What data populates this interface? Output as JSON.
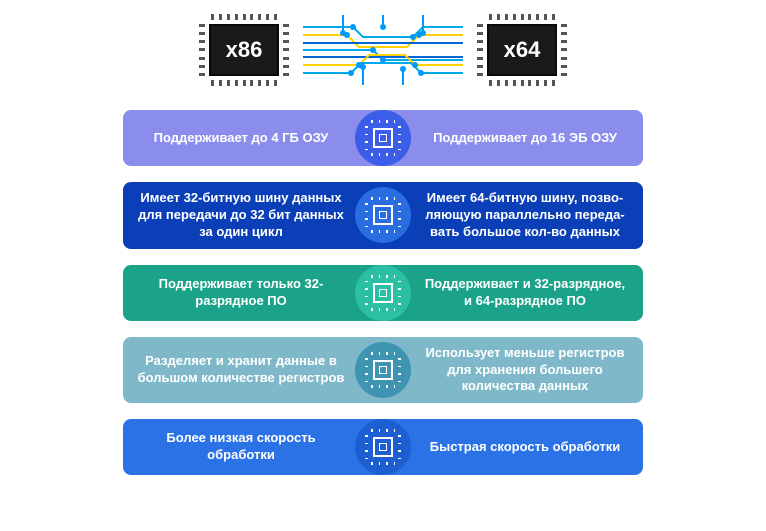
{
  "header": {
    "chip_left_label": "x86",
    "chip_right_label": "x64",
    "chip_body_color": "#1a1a1a",
    "chip_text_color": "#ffffff",
    "circuit_colors": {
      "line1": "#00a9e8",
      "line2": "#ffd200",
      "line3": "#0066d6",
      "node": "#0099ff"
    }
  },
  "rows": [
    {
      "left": "Поддерживает до 4 ГБ ОЗУ",
      "right": "Поддерживает до 16 ЭБ ОЗУ",
      "bg_color": "#8a8dec",
      "icon_bg": "#3b5de8"
    },
    {
      "left": "Имеет 32-битную шину данных для передачи до 32 бит данных за один цикл",
      "right": "Имеет 64-битную шину, позво- ляющую параллельно переда- вать большое кол-во данных",
      "bg_color": "#0b3fb8",
      "icon_bg": "#2a6de0"
    },
    {
      "left": "Поддерживает только 32-разрядное ПО",
      "right": "Поддерживает и 32-разрядное, и 64-разрядное ПО",
      "bg_color": "#1ba38a",
      "icon_bg": "#2bbfa4"
    },
    {
      "left": "Разделяет и хранит данные в большом количестве регистров",
      "right": "Использует меньше регистров для хранения большего количества данных",
      "bg_color": "#7fb9c9",
      "icon_bg": "#3f94b1"
    },
    {
      "left": "Более низкая скорость обработки",
      "right": "Быстрая скорость обработки",
      "bg_color": "#2a72e5",
      "icon_bg": "#1d5fd0"
    }
  ],
  "styling": {
    "page_bg": "#ffffff",
    "text_color": "#ffffff",
    "row_font_size": 13,
    "row_font_weight": "bold",
    "row_border_radius": 8,
    "row_width": 520,
    "row_gap": 16,
    "icon_diameter": 56,
    "mini_chip_border": "#ffffff"
  }
}
